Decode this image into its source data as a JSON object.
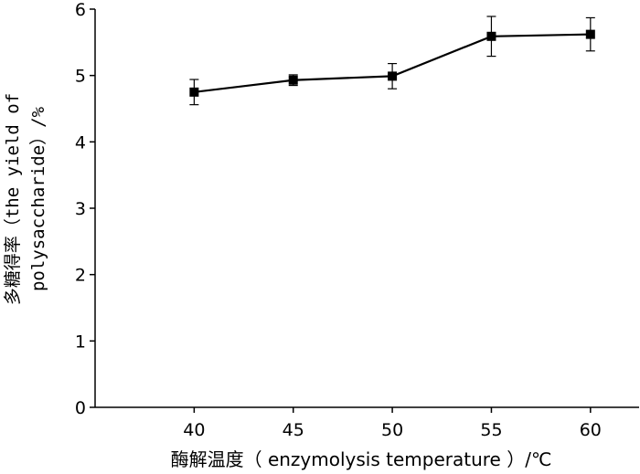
{
  "chart_data": {
    "type": "line",
    "title": "",
    "xlabel": "酶解温度（ enzymolysis temperature ）/℃",
    "ylabel_lines": [
      "多糖得率（the yield of",
      "polysaccharide）/%"
    ],
    "x_ticks": [
      40,
      45,
      50,
      55,
      60
    ],
    "y_ticks": [
      0,
      1,
      2,
      3,
      4,
      5,
      6
    ],
    "xlim": [
      35,
      62.5
    ],
    "ylim": [
      0,
      6
    ],
    "grid": false,
    "series": [
      {
        "x": [
          40,
          45,
          50,
          55,
          60
        ],
        "y": [
          4.75,
          4.93,
          4.99,
          5.59,
          5.62
        ],
        "error": [
          0.19,
          0.08,
          0.19,
          0.3,
          0.25
        ],
        "color": "#000000",
        "marker": "square"
      }
    ]
  }
}
